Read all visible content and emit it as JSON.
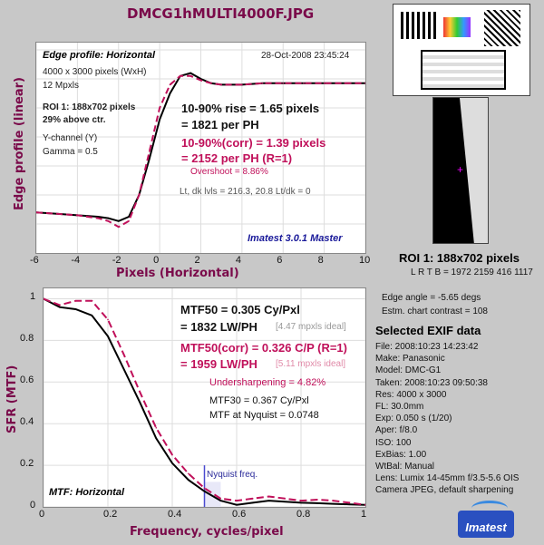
{
  "title": "DMCG1hMULTI4000F.JPG",
  "top": {
    "label": "Edge profile: Horizontal",
    "date": "28-Oct-2008 23:45:24",
    "info1": "4000 x 3000 pixels (WxH)",
    "info2": "12 Mpxls",
    "info3": "ROI 1:  188x702 pixels",
    "info4": "29% above ctr.",
    "info5": "Y-channel  (Y)",
    "info6": "Gamma = 0.5",
    "rise1": "10-90% rise = 1.65 pixels",
    "rise2": "= 1821 per PH",
    "corr1": "10-90%(corr) = 1.39 pixels",
    "corr2": "= 2152 per PH   (R=1)",
    "overshoot": "Overshoot = 8.86%",
    "levels": "Lt, dk lvls = 216.3, 20.8   Lt/dk = 0",
    "version": "Imatest 3.0.1 Master",
    "ylabel": "Edge profile (linear)",
    "xlabel": "Pixels (Horizontal)",
    "xticks": [
      "-6",
      "-4",
      "-2",
      "0",
      "2",
      "4",
      "6",
      "8",
      "10"
    ]
  },
  "bottom": {
    "mtf50a": "MTF50 = 0.305 Cy/Pxl",
    "mtf50b": "= 1832 LW/PH",
    "ideal1": "[4.47 mpxls ideal]",
    "corr_a": "MTF50(corr) = 0.326 C/P   (R=1)",
    "corr_b": "= 1959 LW/PH",
    "ideal2": "[5.11 mpxls ideal]",
    "undersharp": "Undersharpening = 4.82%",
    "mtf30": "MTF30 = 0.367 Cy/Pxl",
    "nyq": "MTF at Nyquist = 0.0748",
    "nyq_label": "Nyquist freq.",
    "label": "MTF: Horizontal",
    "ylabel": "SFR (MTF)",
    "xlabel": "Frequency, cycles/pixel",
    "xticks": [
      "0",
      "0.2",
      "0.4",
      "0.6",
      "0.8",
      "1"
    ],
    "yticks": [
      "1",
      "0.8",
      "0.6",
      "0.4",
      "0.2",
      "0"
    ]
  },
  "right": {
    "roi_label": "ROI 1:  188x702 pixels",
    "lrtb": "L R  T B = 1972 2159  416 1117",
    "edge_angle": "Edge angle = -5.65 degs",
    "contrast": "Estm. chart contrast = 108",
    "exif_title": "Selected EXIF data",
    "exif": [
      "File:  2008:10:23 14:23:42",
      "Make:  Panasonic",
      "Model:  DMC-G1",
      "Taken:  2008:10:23 09:50:38",
      "Res:    4000 x 3000",
      "FL:     30.0mm",
      "Exp:    0.050 s  (1/20)",
      "Aper:   f/8.0",
      "ISO:    100",
      "ExBias:  1.00",
      "WtBal:  Manual",
      "Lens:  Lumix 14-45mm f/3.5-5.6 OIS",
      "Camera JPEG, default sharpening"
    ],
    "logo": "Imatest"
  },
  "colors": {
    "uncorrected": "#000000",
    "corrected": "#c0105a",
    "accent": "#7a0a4a"
  },
  "chart_data": [
    {
      "type": "line",
      "title": "Edge profile: Horizontal",
      "xlabel": "Pixels (Horizontal)",
      "ylabel": "Edge profile (linear)",
      "xlim": [
        -6,
        10
      ],
      "series": [
        {
          "x": [
            -6,
            -5,
            -4,
            -3,
            -2.5,
            -2,
            -1.5,
            -1,
            -0.5,
            0,
            0.5,
            1,
            1.5,
            2,
            2.5,
            3,
            4,
            5,
            6,
            7,
            8,
            9,
            10
          ],
          "values": [
            0.08,
            0.07,
            0.06,
            0.05,
            0.04,
            0.02,
            0.05,
            0.2,
            0.45,
            0.72,
            0.9,
            1.02,
            1.04,
            1.0,
            0.97,
            0.96,
            0.96,
            0.97,
            0.97,
            0.97,
            0.97,
            0.97,
            0.97
          ]
        },
        {
          "x": [
            -6,
            -5,
            -4,
            -3,
            -2.5,
            -2,
            -1.5,
            -1,
            -0.5,
            0,
            0.5,
            1,
            1.5,
            2,
            2.5,
            3,
            4,
            5,
            6,
            7,
            8,
            9,
            10
          ],
          "values": [
            0.08,
            0.07,
            0.06,
            0.04,
            0.02,
            -0.02,
            0.02,
            0.2,
            0.5,
            0.8,
            0.96,
            1.02,
            1.02,
            0.99,
            0.97,
            0.96,
            0.96,
            0.97,
            0.97,
            0.97,
            0.97,
            0.97,
            0.97
          ]
        }
      ]
    },
    {
      "type": "line",
      "title": "MTF: Horizontal",
      "xlabel": "Frequency, cycles/pixel",
      "ylabel": "SFR (MTF)",
      "xlim": [
        0,
        1
      ],
      "ylim": [
        0,
        1.05
      ],
      "series": [
        {
          "x": [
            0,
            0.05,
            0.1,
            0.15,
            0.2,
            0.25,
            0.3,
            0.35,
            0.4,
            0.45,
            0.5,
            0.55,
            0.6,
            0.65,
            0.7,
            0.75,
            0.8,
            0.85,
            0.9,
            0.95,
            1.0
          ],
          "values": [
            1.0,
            0.96,
            0.95,
            0.92,
            0.82,
            0.66,
            0.5,
            0.33,
            0.21,
            0.13,
            0.075,
            0.03,
            0.01,
            0.02,
            0.03,
            0.025,
            0.02,
            0.018,
            0.015,
            0.012,
            0.01
          ]
        },
        {
          "x": [
            0,
            0.05,
            0.1,
            0.15,
            0.2,
            0.25,
            0.3,
            0.35,
            0.4,
            0.45,
            0.5,
            0.55,
            0.6,
            0.65,
            0.7,
            0.75,
            0.8,
            0.85,
            0.9,
            0.95,
            1.0
          ],
          "values": [
            1.0,
            0.97,
            0.99,
            0.99,
            0.9,
            0.73,
            0.55,
            0.38,
            0.25,
            0.16,
            0.09,
            0.04,
            0.03,
            0.04,
            0.05,
            0.04,
            0.03,
            0.035,
            0.03,
            0.02,
            0.01
          ]
        }
      ]
    }
  ]
}
